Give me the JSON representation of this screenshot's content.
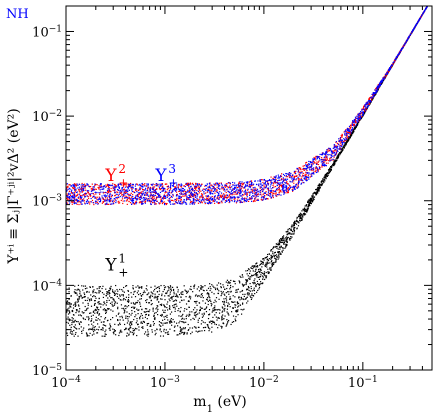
{
  "chart_data": {
    "type": "scatter",
    "corner_label": "NH",
    "xlabel": "m",
    "xlabel_sub": "1",
    "xlabel_unit": " (eV)",
    "ylabel": "Y⁺ⁱ ≡ Σⱼ|Γ⁺ʲⁱ|²vΔ² (eV²)",
    "xscale": "log",
    "yscale": "log",
    "xlim": [
      0.0001,
      0.5
    ],
    "ylim": [
      1e-05,
      0.2
    ],
    "x_ticks": [
      {
        "value": 0.0001,
        "base": "10",
        "exp": "−4"
      },
      {
        "value": 0.001,
        "base": "10",
        "exp": "−3"
      },
      {
        "value": 0.01,
        "base": "10",
        "exp": "−2"
      },
      {
        "value": 0.1,
        "base": "10",
        "exp": "−1"
      }
    ],
    "y_ticks": [
      {
        "value": 1e-05,
        "base": "10",
        "exp": "−5"
      },
      {
        "value": 0.0001,
        "base": "10",
        "exp": "−4"
      },
      {
        "value": 0.001,
        "base": "10",
        "exp": "−3"
      },
      {
        "value": 0.01,
        "base": "10",
        "exp": "−2"
      },
      {
        "value": 0.1,
        "base": "10",
        "exp": "−1"
      }
    ],
    "series": [
      {
        "name": "Y⁺¹",
        "color": "#000000",
        "band_lower": [
          [
            0.0001,
            2.5e-05
          ],
          [
            0.001,
            2.5e-05
          ],
          [
            0.003,
            2.8e-05
          ],
          [
            0.005,
            3.4e-05
          ],
          [
            0.01,
            0.00011
          ],
          [
            0.02,
            0.0004
          ],
          [
            0.05,
            0.0025
          ],
          [
            0.1,
            0.01
          ],
          [
            0.2,
            0.04
          ],
          [
            0.45,
            0.2
          ]
        ],
        "band_upper": [
          [
            0.0001,
            0.0001
          ],
          [
            0.001,
            0.0001
          ],
          [
            0.003,
            0.000105
          ],
          [
            0.005,
            0.00012
          ],
          [
            0.01,
            0.00021
          ],
          [
            0.02,
            0.00055
          ],
          [
            0.05,
            0.0028
          ],
          [
            0.1,
            0.0105
          ],
          [
            0.2,
            0.041
          ],
          [
            0.45,
            0.2
          ]
        ]
      },
      {
        "name": "Y⁺²",
        "color": "#ff0000",
        "band_lower": [
          [
            0.0001,
            0.0009
          ],
          [
            0.001,
            0.0009
          ],
          [
            0.005,
            0.00093
          ],
          [
            0.01,
            0.001
          ],
          [
            0.02,
            0.0013
          ],
          [
            0.05,
            0.003
          ],
          [
            0.1,
            0.0102
          ],
          [
            0.2,
            0.04
          ],
          [
            0.45,
            0.2
          ]
        ],
        "band_upper": [
          [
            0.0001,
            0.0016
          ],
          [
            0.001,
            0.0016
          ],
          [
            0.005,
            0.00165
          ],
          [
            0.01,
            0.0018
          ],
          [
            0.02,
            0.0023
          ],
          [
            0.05,
            0.0045
          ],
          [
            0.1,
            0.0125
          ],
          [
            0.2,
            0.042
          ],
          [
            0.45,
            0.2
          ]
        ]
      },
      {
        "name": "Y⁺³",
        "color": "#0000ff",
        "band_lower": [
          [
            0.0001,
            0.0009
          ],
          [
            0.001,
            0.0009
          ],
          [
            0.005,
            0.00093
          ],
          [
            0.01,
            0.001
          ],
          [
            0.02,
            0.0013
          ],
          [
            0.05,
            0.003
          ],
          [
            0.1,
            0.0102
          ],
          [
            0.2,
            0.04
          ],
          [
            0.45,
            0.2
          ]
        ],
        "band_upper": [
          [
            0.0001,
            0.0016
          ],
          [
            0.001,
            0.0016
          ],
          [
            0.005,
            0.00165
          ],
          [
            0.01,
            0.0018
          ],
          [
            0.02,
            0.0023
          ],
          [
            0.05,
            0.0045
          ],
          [
            0.1,
            0.0125
          ],
          [
            0.2,
            0.042
          ],
          [
            0.45,
            0.2
          ]
        ]
      }
    ],
    "annotations": [
      {
        "text": "Y",
        "sup": "2",
        "sub": "+",
        "color": "#ff0000",
        "x": 0.00025,
        "y": 0.0017
      },
      {
        "text": "Y",
        "sup": "3",
        "sub": "+",
        "color": "#0000ff",
        "x": 0.0008,
        "y": 0.0017
      },
      {
        "text": "Y",
        "sup": "1",
        "sub": "+",
        "color": "#000000",
        "x": 0.00025,
        "y": 0.00015
      }
    ]
  }
}
